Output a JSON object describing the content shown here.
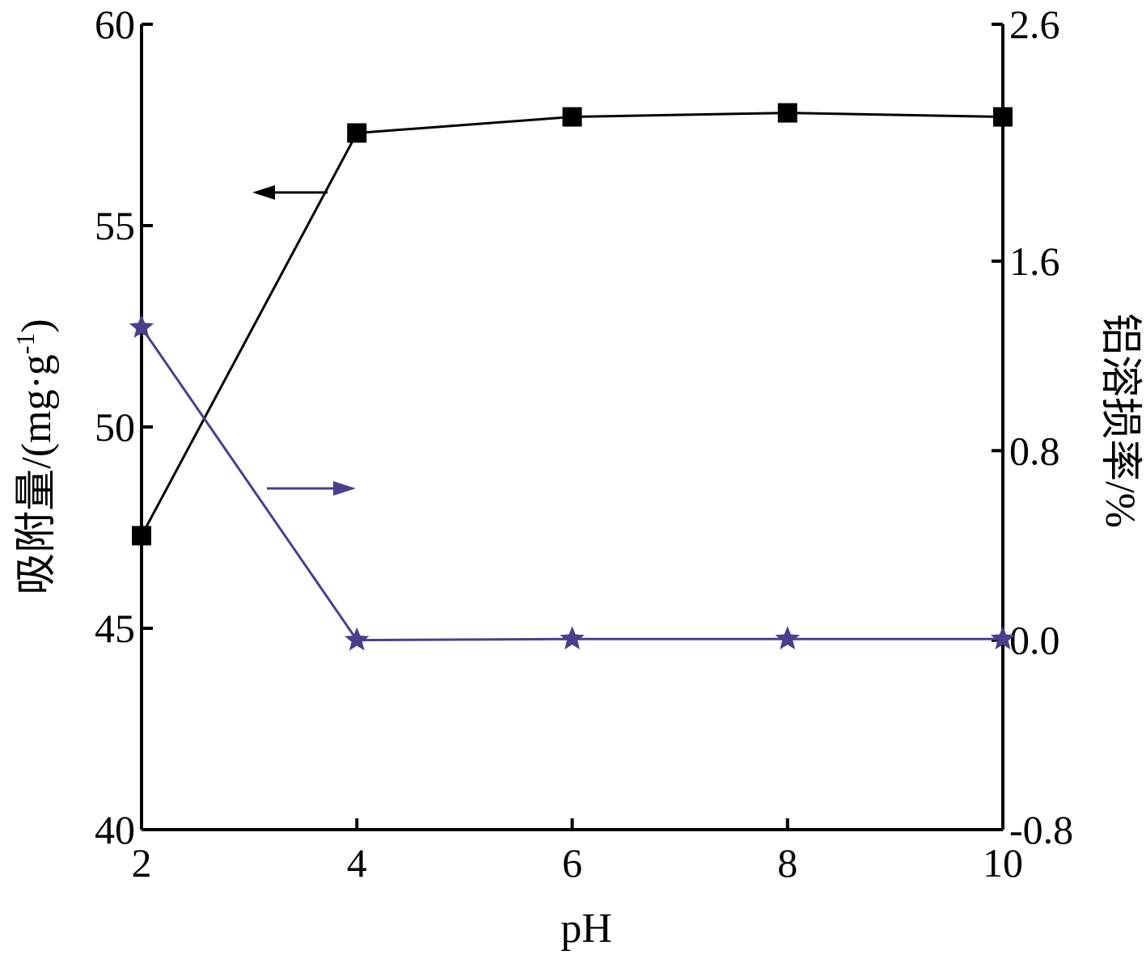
{
  "chart_data": {
    "type": "line",
    "title": "",
    "xlabel": "pH",
    "ylabel_left": "吸附量/(mg·g",
    "ylabel_left_sup": "-1",
    "ylabel_left_close": ")",
    "ylabel_right": "铝溶损率/%",
    "x": [
      2,
      4,
      6,
      8,
      10
    ],
    "xlim": [
      2,
      10
    ],
    "xticks": [
      "2",
      "4",
      "6",
      "8",
      "10"
    ],
    "ylim_left": [
      40,
      60
    ],
    "yticks_left": [
      "40",
      "45",
      "50",
      "55",
      "60"
    ],
    "ylim_right": [
      -0.8,
      2.6
    ],
    "yticks_right": [
      "-0.8",
      "0.0",
      "0.8",
      "1.6",
      "2.6"
    ],
    "grid": false,
    "legend": "none",
    "series": [
      {
        "axis": "left",
        "marker": "square",
        "color": "#000000",
        "values": [
          47.3,
          57.3,
          57.7,
          57.8,
          57.7
        ]
      },
      {
        "axis": "right",
        "marker": "star",
        "color": "#4a3f8c",
        "values": [
          1.32,
          0.0,
          0.005,
          0.005,
          0.005
        ]
      }
    ],
    "annotations": [
      {
        "type": "arrow",
        "direction": "left",
        "color": "#000000"
      },
      {
        "type": "arrow",
        "direction": "right",
        "color": "#4a3f8c"
      }
    ]
  }
}
